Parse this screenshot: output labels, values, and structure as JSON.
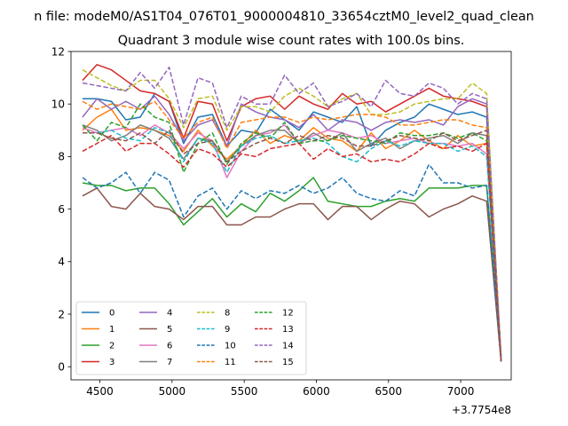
{
  "chart_data": {
    "type": "line",
    "suptitle": "n file: modeM0/AS1T04_076T01_9000004810_33654cztM0_level2_quad_clean",
    "title": "Quadrant 3 module wise count rates with 100.0s bins.",
    "xlabel": "",
    "ylabel": "",
    "x_offset_label": "+3.7754e8",
    "xlim": [
      4300,
      7350
    ],
    "ylim": [
      -0.5,
      12
    ],
    "xticks": [
      4500,
      5000,
      5500,
      6000,
      6500,
      7000
    ],
    "yticks": [
      0,
      2,
      4,
      6,
      8,
      10,
      12
    ],
    "grid": false,
    "legend": {
      "placement": "lower-left",
      "columns": 4
    },
    "x": [
      4380,
      4480,
      4580,
      4680,
      4780,
      4880,
      4980,
      5080,
      5180,
      5280,
      5380,
      5480,
      5580,
      5680,
      5780,
      5880,
      5980,
      6080,
      6180,
      6280,
      6380,
      6480,
      6580,
      6680,
      6780,
      6880,
      6980,
      7080,
      7180,
      7280
    ],
    "series": [
      {
        "name": "0",
        "color": "#1f77b4",
        "dash": "solid",
        "values": [
          10.2,
          10.2,
          10.1,
          9.4,
          9.5,
          10.4,
          10.1,
          8.5,
          9.5,
          9.6,
          8.4,
          9.0,
          8.9,
          9.8,
          9.4,
          9.0,
          9.7,
          9.5,
          9.3,
          9.9,
          8.4,
          9.0,
          9.3,
          9.5,
          10.0,
          9.8,
          9.6,
          9.7,
          9.5,
          0.3
        ]
      },
      {
        "name": "1",
        "color": "#ff7f0e",
        "dash": "solid",
        "values": [
          9.0,
          9.5,
          9.8,
          9.0,
          9.1,
          9.0,
          8.8,
          8.2,
          9.0,
          8.4,
          7.9,
          8.4,
          9.0,
          8.5,
          8.8,
          8.6,
          9.1,
          8.7,
          8.6,
          8.2,
          8.9,
          8.3,
          8.6,
          9.0,
          8.6,
          8.3,
          8.8,
          8.4,
          8.5,
          0.2
        ]
      },
      {
        "name": "2",
        "color": "#2ca02c",
        "dash": "solid",
        "values": [
          7.0,
          6.9,
          6.9,
          6.7,
          6.8,
          6.8,
          6.2,
          5.4,
          5.9,
          6.4,
          5.7,
          6.2,
          5.9,
          6.6,
          6.3,
          6.7,
          7.2,
          6.3,
          6.2,
          6.1,
          6.1,
          6.3,
          6.4,
          6.3,
          6.8,
          6.8,
          6.8,
          6.9,
          6.9,
          0.2
        ]
      },
      {
        "name": "3",
        "color": "#d62728",
        "dash": "solid",
        "values": [
          10.9,
          11.5,
          11.3,
          10.9,
          10.5,
          10.4,
          10.1,
          8.7,
          10.1,
          10.0,
          8.6,
          9.9,
          10.2,
          10.3,
          9.8,
          10.3,
          10.0,
          9.8,
          10.4,
          10.0,
          10.1,
          9.7,
          10.0,
          10.3,
          10.6,
          10.3,
          10.2,
          10.1,
          9.9,
          0.3
        ]
      },
      {
        "name": "4",
        "color": "#9467bd",
        "dash": "solid",
        "values": [
          9.5,
          10.2,
          9.8,
          10.1,
          9.8,
          10.3,
          9.6,
          8.6,
          9.2,
          9.4,
          8.4,
          10.0,
          9.7,
          9.5,
          9.4,
          9.1,
          9.6,
          9.0,
          9.4,
          9.3,
          9.0,
          9.3,
          9.4,
          9.3,
          9.4,
          9.2,
          9.9,
          10.2,
          10.0,
          0.3
        ]
      },
      {
        "name": "5",
        "color": "#8c564b",
        "dash": "solid",
        "values": [
          6.5,
          6.8,
          6.1,
          6.0,
          6.6,
          6.1,
          6.0,
          5.6,
          6.1,
          6.1,
          5.4,
          5.4,
          5.7,
          5.7,
          6.0,
          6.2,
          6.2,
          5.6,
          6.1,
          6.1,
          5.6,
          6.0,
          6.3,
          6.2,
          5.7,
          6.0,
          6.2,
          6.5,
          6.3,
          0.2
        ]
      },
      {
        "name": "6",
        "color": "#e377c2",
        "dash": "solid",
        "values": [
          9.1,
          8.9,
          9.0,
          9.1,
          8.8,
          9.2,
          8.9,
          8.3,
          8.9,
          8.6,
          7.2,
          8.2,
          8.8,
          8.9,
          9.2,
          8.5,
          8.8,
          9.0,
          8.9,
          8.7,
          8.8,
          8.5,
          8.6,
          8.7,
          8.5,
          8.5,
          8.4,
          8.5,
          8.1,
          0.2
        ]
      },
      {
        "name": "7",
        "color": "#7f7f7f",
        "dash": "solid",
        "values": [
          9.2,
          9.0,
          8.6,
          8.8,
          9.2,
          9.0,
          8.7,
          7.9,
          8.7,
          8.6,
          7.8,
          8.4,
          8.8,
          9.0,
          9.0,
          8.5,
          8.9,
          8.6,
          8.9,
          8.2,
          8.5,
          8.7,
          8.3,
          8.6,
          8.7,
          8.8,
          8.5,
          8.9,
          8.8,
          0.2
        ]
      },
      {
        "name": "8",
        "color": "#bcbd22",
        "dash": "dashed",
        "values": [
          11.3,
          11.0,
          10.7,
          10.5,
          10.9,
          10.9,
          10.2,
          9.1,
          10.2,
          10.3,
          9.0,
          9.9,
          9.9,
          9.7,
          10.3,
          10.6,
          10.3,
          9.9,
          10.2,
          10.4,
          9.6,
          9.6,
          9.7,
          10.0,
          10.1,
          10.2,
          10.2,
          10.8,
          10.4,
          0.3
        ]
      },
      {
        "name": "9",
        "color": "#17becf",
        "dash": "dashed",
        "values": [
          8.9,
          8.9,
          9.0,
          8.7,
          8.6,
          9.1,
          8.9,
          7.8,
          8.7,
          8.5,
          7.4,
          8.4,
          8.7,
          8.8,
          8.5,
          8.6,
          8.7,
          8.5,
          8.0,
          7.8,
          8.3,
          8.6,
          8.4,
          8.6,
          8.5,
          8.5,
          8.2,
          8.4,
          8.0,
          0.2
        ]
      },
      {
        "name": "10",
        "color": "#1f77b4",
        "dash": "dashed",
        "values": [
          7.2,
          6.8,
          7.0,
          7.4,
          6.6,
          7.4,
          7.1,
          5.7,
          6.5,
          6.8,
          6.0,
          6.7,
          6.4,
          6.7,
          6.6,
          6.9,
          6.6,
          6.8,
          7.2,
          6.6,
          6.4,
          6.3,
          6.7,
          6.5,
          7.7,
          7.0,
          7.0,
          6.8,
          6.9,
          0.2
        ]
      },
      {
        "name": "11",
        "color": "#ff7f0e",
        "dash": "dashed",
        "values": [
          10.1,
          9.8,
          10.0,
          9.9,
          9.8,
          10.1,
          9.4,
          8.7,
          9.3,
          9.5,
          8.3,
          9.3,
          9.4,
          9.5,
          9.5,
          9.3,
          9.5,
          9.4,
          9.5,
          9.6,
          9.6,
          9.5,
          9.2,
          9.2,
          9.3,
          9.4,
          9.4,
          9.2,
          9.1,
          0.3
        ]
      },
      {
        "name": "12",
        "color": "#2ca02c",
        "dash": "dashed",
        "values": [
          9.2,
          8.6,
          9.3,
          9.1,
          10.0,
          9.5,
          9.3,
          7.4,
          8.5,
          8.9,
          7.7,
          8.5,
          8.9,
          8.7,
          9.3,
          8.5,
          8.6,
          8.6,
          8.8,
          8.7,
          8.6,
          8.5,
          8.9,
          8.8,
          8.8,
          8.9,
          8.7,
          8.9,
          8.6,
          0.2
        ]
      },
      {
        "name": "13",
        "color": "#d62728",
        "dash": "dashed",
        "values": [
          8.2,
          8.5,
          8.8,
          8.2,
          8.5,
          8.5,
          8.1,
          7.6,
          8.3,
          8.1,
          7.6,
          8.1,
          8.0,
          8.3,
          8.4,
          8.5,
          7.9,
          8.3,
          8.0,
          8.1,
          7.8,
          7.9,
          7.8,
          8.1,
          8.5,
          8.3,
          8.4,
          8.2,
          8.5,
          0.2
        ]
      },
      {
        "name": "14",
        "color": "#9467bd",
        "dash": "dashed",
        "values": [
          10.8,
          10.7,
          10.6,
          10.5,
          11.2,
          10.6,
          11.4,
          9.2,
          11.0,
          10.8,
          9.1,
          10.3,
          10.0,
          10.0,
          11.1,
          10.4,
          10.8,
          9.9,
          10.1,
          10.4,
          9.9,
          10.9,
          10.4,
          10.3,
          10.8,
          10.6,
          10.0,
          10.4,
          10.2,
          0.3
        ]
      },
      {
        "name": "15",
        "color": "#8c564b",
        "dash": "dashed",
        "values": [
          8.9,
          8.9,
          8.7,
          8.6,
          8.9,
          8.5,
          9.0,
          8.1,
          8.5,
          8.6,
          7.8,
          8.2,
          8.5,
          8.7,
          8.5,
          8.8,
          8.6,
          8.8,
          8.7,
          8.4,
          8.4,
          8.6,
          8.8,
          8.7,
          8.6,
          8.9,
          8.6,
          8.8,
          9.0,
          0.2
        ]
      }
    ]
  }
}
